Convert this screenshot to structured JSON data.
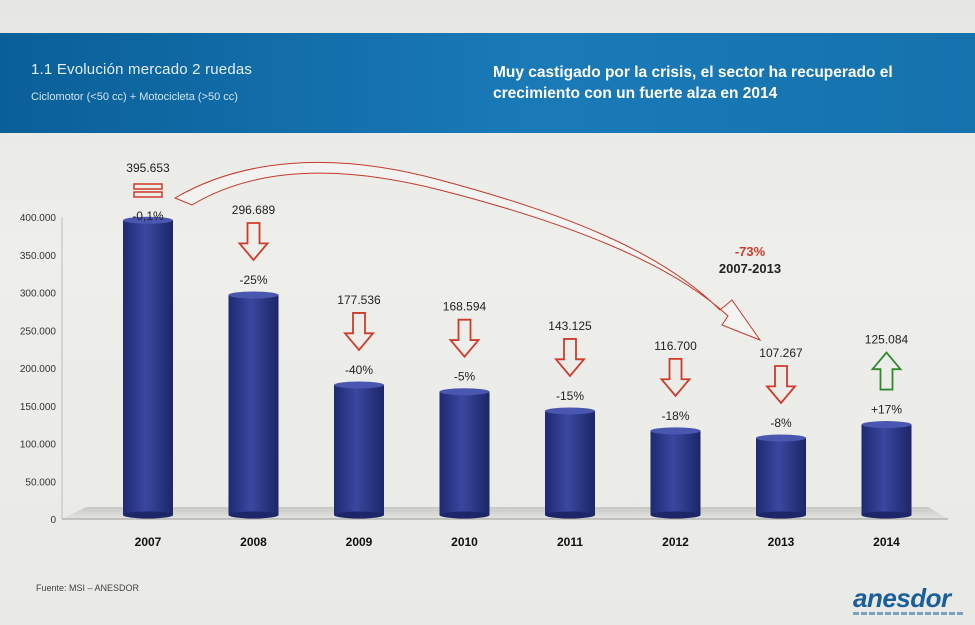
{
  "header": {
    "title": "1.1 Evolución mercado 2 ruedas",
    "subtitle": "Ciclomotor (<50 cc) + Motocicleta (>50 cc)",
    "headline": "Muy castigado por la crisis, el sector ha recuperado el crecimiento con un fuerte alza en 2014"
  },
  "annotation": {
    "change": "-73%",
    "period": "2007-2013"
  },
  "footer": {
    "source": "Fuente: MSI – ANESDOR",
    "logo": "anesdor"
  },
  "colors": {
    "bar": "#2e3a8c",
    "down_arrow": "#d03a2a",
    "up_arrow": "#2f8a2f",
    "banner": "#0f6aa6"
  },
  "chart_data": {
    "type": "bar",
    "categories": [
      "2007",
      "2008",
      "2009",
      "2010",
      "2011",
      "2012",
      "2013",
      "2014"
    ],
    "values": [
      395653,
      296689,
      177536,
      168594,
      143125,
      116700,
      107267,
      125084
    ],
    "value_labels": [
      "395.653",
      "296.689",
      "177.536",
      "168.594",
      "143.125",
      "116.700",
      "107.267",
      "125.084"
    ],
    "change_labels": [
      "-0,1%",
      "-25%",
      "-40%",
      "-5%",
      "-15%",
      "-18%",
      "-8%",
      "+17%"
    ],
    "trend": [
      "flat",
      "down",
      "down",
      "down",
      "down",
      "down",
      "down",
      "up"
    ],
    "ylim": [
      0,
      400000
    ],
    "yticks": [
      0,
      50000,
      100000,
      150000,
      200000,
      250000,
      300000,
      350000,
      400000
    ],
    "ytick_labels": [
      "0",
      "50.000",
      "100.000",
      "150.000",
      "200.000",
      "250.000",
      "300.000",
      "350.000",
      "400.000"
    ],
    "grid": false,
    "title": "",
    "xlabel": "",
    "ylabel": ""
  }
}
